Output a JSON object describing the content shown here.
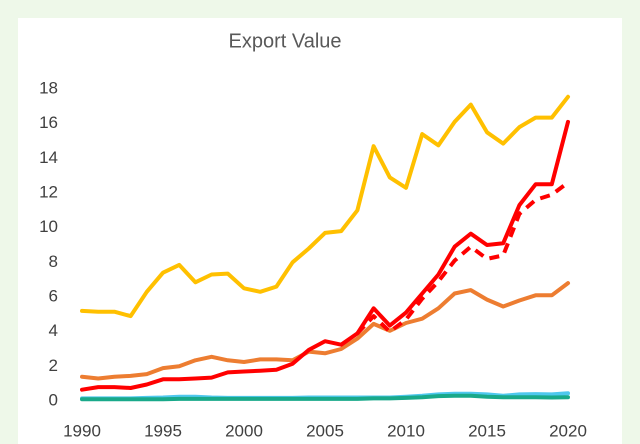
{
  "chart_data": {
    "type": "line",
    "title": "Export Value",
    "x": [
      1990,
      1991,
      1992,
      1993,
      1994,
      1995,
      1996,
      1997,
      1998,
      1999,
      2000,
      2001,
      2002,
      2003,
      2004,
      2005,
      2006,
      2007,
      2008,
      2009,
      2010,
      2011,
      2012,
      2013,
      2014,
      2015,
      2016,
      2017,
      2018,
      2019,
      2020
    ],
    "xlim": [
      1990,
      2020
    ],
    "xticks": [
      1990,
      1995,
      2000,
      2005,
      2010,
      2015,
      2020
    ],
    "ylim": [
      0,
      18
    ],
    "yticks": [
      0,
      2,
      4,
      6,
      8,
      10,
      12,
      14,
      16,
      18
    ],
    "grid": false,
    "series": [
      {
        "color": "#ffc000",
        "values": [
          5.2,
          5.15,
          5.15,
          4.9,
          6.3,
          7.4,
          7.85,
          6.85,
          7.3,
          7.35,
          6.5,
          6.3,
          6.6,
          8.0,
          8.8,
          9.7,
          9.8,
          11.0,
          14.7,
          12.9,
          12.3,
          15.4,
          14.75,
          16.1,
          17.1,
          15.5,
          14.85,
          15.8,
          16.35,
          16.35,
          17.55
        ]
      },
      {
        "color": "#ed7d31",
        "values": [
          1.4,
          1.3,
          1.4,
          1.45,
          1.55,
          1.9,
          2.0,
          2.35,
          2.55,
          2.35,
          2.25,
          2.4,
          2.4,
          2.35,
          2.85,
          2.75,
          3.0,
          3.6,
          4.45,
          4.05,
          4.5,
          4.75,
          5.35,
          6.2,
          6.4,
          5.85,
          5.45,
          5.8,
          6.1,
          6.1,
          6.8
        ]
      },
      {
        "color": "#ff0000",
        "linestyle": "dashed",
        "values": [
          null,
          null,
          null,
          null,
          null,
          null,
          null,
          null,
          null,
          null,
          null,
          null,
          null,
          null,
          null,
          null,
          null,
          3.9,
          4.9,
          4.0,
          4.7,
          5.9,
          6.9,
          8.1,
          8.9,
          8.2,
          8.4,
          10.8,
          11.6,
          11.9,
          12.6
        ]
      },
      {
        "color": "#ff0000",
        "values": [
          0.65,
          0.8,
          0.8,
          0.75,
          0.95,
          1.25,
          1.25,
          1.3,
          1.35,
          1.65,
          1.7,
          1.75,
          1.8,
          2.15,
          2.95,
          3.45,
          3.25,
          3.9,
          5.35,
          4.35,
          5.1,
          6.2,
          7.3,
          8.9,
          9.65,
          9.0,
          9.1,
          11.3,
          12.5,
          12.5,
          16.1
        ]
      },
      {
        "color": "#4fc8ee",
        "values": [
          0.15,
          0.15,
          0.15,
          0.15,
          0.18,
          0.2,
          0.25,
          0.25,
          0.2,
          0.18,
          0.18,
          0.18,
          0.18,
          0.18,
          0.2,
          0.2,
          0.2,
          0.2,
          0.2,
          0.2,
          0.25,
          0.3,
          0.38,
          0.42,
          0.42,
          0.38,
          0.3,
          0.38,
          0.4,
          0.38,
          0.45
        ]
      },
      {
        "color": "#19a98a",
        "values": [
          0.1,
          0.1,
          0.1,
          0.1,
          0.1,
          0.1,
          0.12,
          0.12,
          0.12,
          0.12,
          0.12,
          0.12,
          0.12,
          0.12,
          0.12,
          0.12,
          0.12,
          0.12,
          0.15,
          0.15,
          0.18,
          0.22,
          0.28,
          0.3,
          0.3,
          0.25,
          0.22,
          0.22,
          0.22,
          0.2,
          0.22
        ]
      }
    ]
  }
}
